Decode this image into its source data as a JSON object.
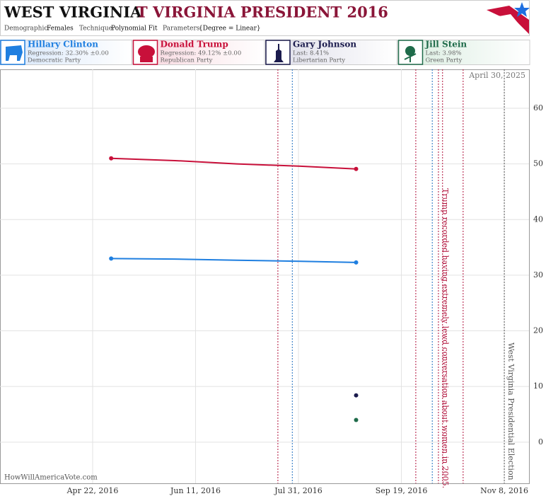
{
  "header": {
    "title": "WEST VIRGINIA",
    "subtitle": "T VIRGINIA PRESIDENT 2016",
    "meta": [
      {
        "key": "Demographic:",
        "value": "Females"
      },
      {
        "key": "Technique:",
        "value": "Polynomial Fit"
      },
      {
        "key": "Parameters:",
        "value": "{Degree = Linear}"
      }
    ]
  },
  "legend_cards": [
    {
      "detail": "Regression: 32.30% ±0.00",
      "party": "Democratic Party"
    },
    {
      "detail": "Regression: 49.12% ±0.00",
      "party": "Republican Party"
    },
    {
      "detail": "Last: 8.41%",
      "party": "Libertarian Party"
    },
    {
      "detail": "Last: 3.98%",
      "party": "Green Party"
    }
  ],
  "watermark": "HowWillAmericaVote.com",
  "chart_data": {
    "type": "line",
    "date_label": "April 30, 2025",
    "x": [
      "2016-05-01",
      "2016-06-01",
      "2016-07-01",
      "2016-08-01",
      "2016-08-28"
    ],
    "series": [
      {
        "name": "Hillary Clinton",
        "color": "#1f7fe0",
        "values": [
          33.0,
          32.9,
          32.7,
          32.5,
          32.3
        ]
      },
      {
        "name": "Donald Trump",
        "color": "#c8103a",
        "values": [
          51.0,
          50.6,
          50.0,
          49.6,
          49.1
        ]
      },
      {
        "name": "Gary Johnson",
        "color": "#1b1b4d",
        "values": [
          null,
          null,
          null,
          null,
          8.41
        ]
      },
      {
        "name": "Jill Stein",
        "color": "#1f6b4a",
        "values": [
          null,
          null,
          null,
          null,
          3.98
        ]
      }
    ],
    "xlim": [
      "2016-03-08",
      "2016-11-20"
    ],
    "xticks": [
      {
        "value": "2016-04-22",
        "label": "Apr 22, 2016"
      },
      {
        "value": "2016-06-11",
        "label": "Jun 11, 2016"
      },
      {
        "value": "2016-07-31",
        "label": "Jul 31, 2016"
      },
      {
        "value": "2016-09-19",
        "label": "Sep 19, 2016"
      },
      {
        "value": "2016-11-08",
        "label": "Nov 8, 2016"
      }
    ],
    "ylim": [
      -7.4,
      67
    ],
    "yticks": [
      0,
      10,
      20,
      30,
      40,
      50,
      60
    ],
    "grid": true,
    "events": [
      {
        "x": "2016-07-21",
        "color": "#b0103a"
      },
      {
        "x": "2016-07-28",
        "color": "#1f6fc0"
      },
      {
        "x": "2016-09-26",
        "color": "#b0103a"
      },
      {
        "x": "2016-10-04",
        "color": "#1f6fc0"
      },
      {
        "x": "2016-10-07",
        "color": "#b0103a"
      },
      {
        "x": "2016-10-09",
        "color": "#b0103a"
      },
      {
        "x": "2016-10-19",
        "color": "#b0103a"
      },
      {
        "x": "2016-11-08",
        "color": "#555555"
      }
    ],
    "annotations": [
      {
        "x": "2016-10-07",
        "text": "Trump recorded having extremely lewd conversation about women in 2005.",
        "color": "#b0103a"
      },
      {
        "x": "2016-11-08",
        "text": "West Virginia Presidential Election",
        "color": "#555555"
      }
    ]
  }
}
